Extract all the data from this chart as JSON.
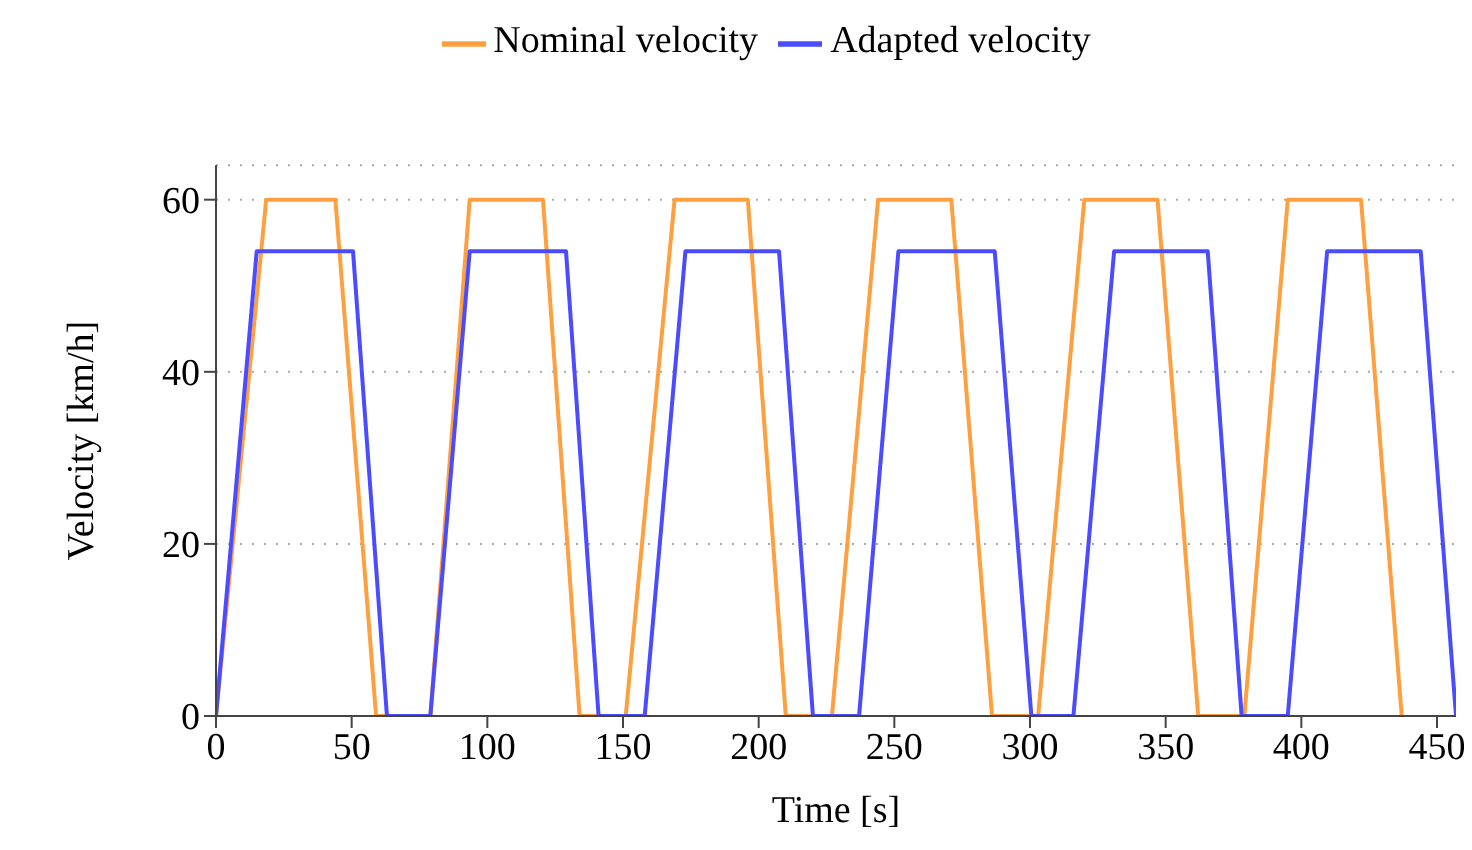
{
  "chart_data": {
    "type": "line",
    "xlabel": "Time [s]",
    "ylabel": "Velocity [km/h]",
    "xlim": [
      0,
      457
    ],
    "ylim": [
      0,
      64
    ],
    "xticks": [
      0,
      50,
      100,
      150,
      200,
      250,
      300,
      350,
      400,
      450
    ],
    "yticks": [
      0,
      20,
      40,
      60
    ],
    "grid": "y",
    "legend": "top",
    "marker": "none",
    "line_style": "solid",
    "series": [
      {
        "name": "Nominal velocity",
        "color": "#ffa040",
        "x": [
          0,
          18.5,
          44,
          59,
          79,
          93.5,
          120.5,
          134,
          151,
          169,
          196,
          210,
          227,
          244,
          271,
          286,
          303,
          320,
          347,
          362,
          379,
          395,
          422,
          437
        ],
        "values": [
          0,
          60,
          60,
          0,
          0,
          60,
          60,
          0,
          0,
          60,
          60,
          0,
          0,
          60,
          60,
          0,
          0,
          60,
          60,
          0,
          0,
          60,
          60,
          0
        ]
      },
      {
        "name": "Adapted velocity",
        "color": "#4b4bff",
        "x": [
          0,
          15,
          50.5,
          63,
          79,
          93.5,
          129,
          141,
          158,
          173,
          207.5,
          220,
          237,
          251.5,
          287,
          300.5,
          316,
          331,
          365.5,
          378,
          395,
          409.5,
          444,
          457
        ],
        "values": [
          0,
          54,
          54,
          0,
          0,
          54,
          54,
          0,
          0,
          54,
          54,
          0,
          0,
          54,
          54,
          0,
          0,
          54,
          54,
          0,
          0,
          54,
          54,
          0
        ]
      }
    ]
  }
}
